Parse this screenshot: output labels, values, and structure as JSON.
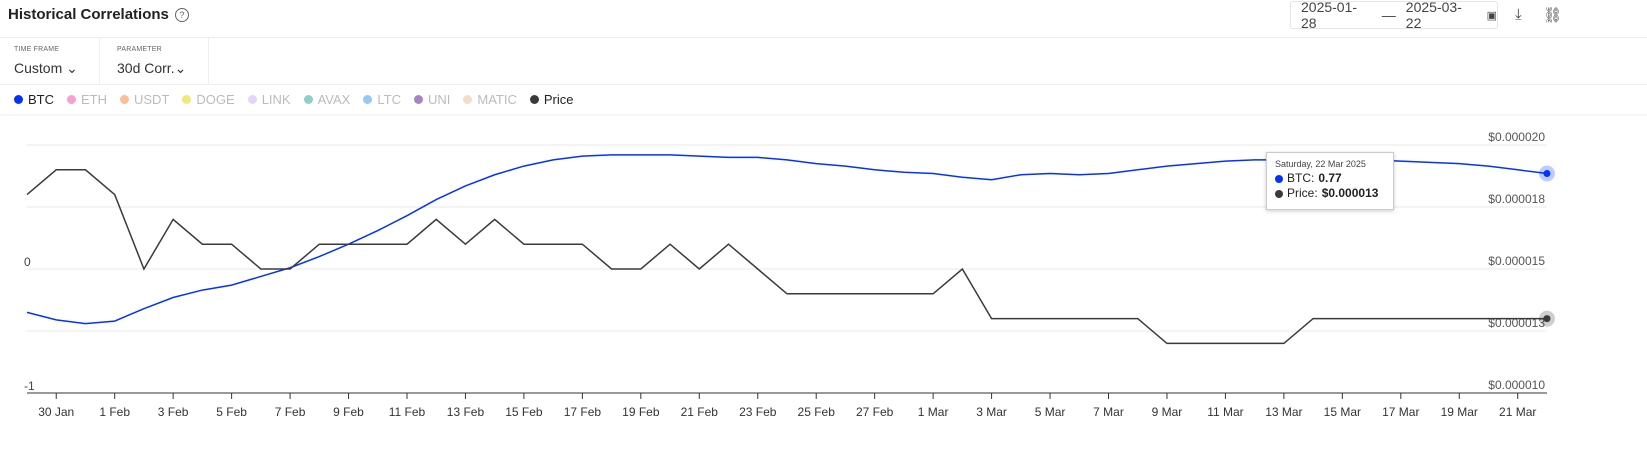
{
  "header": {
    "title": "Historical Correlations",
    "help_icon": "question-circle-icon"
  },
  "date_range": {
    "start": "2025-01-28",
    "separator": "—",
    "end": "2025-03-22",
    "icon": "calendar-icon"
  },
  "actions": {
    "download_icon": "download-icon",
    "link_icon": "link-icon"
  },
  "filters": [
    {
      "label": "TIME FRAME",
      "value": "Custom"
    },
    {
      "label": "PARAMETER",
      "value": "30d Corr."
    }
  ],
  "legend": [
    {
      "name": "BTC",
      "color": "#0033ff",
      "active": true
    },
    {
      "name": "ETH",
      "color": "#f7a1cf",
      "active": false
    },
    {
      "name": "USDT",
      "color": "#f9bf96",
      "active": false
    },
    {
      "name": "DOGE",
      "color": "#eee97a",
      "active": false
    },
    {
      "name": "LINK",
      "color": "#e8d2fb",
      "active": false
    },
    {
      "name": "AVAX",
      "color": "#8ecfcb",
      "active": false
    },
    {
      "name": "LTC",
      "color": "#94c8f7",
      "active": false
    },
    {
      "name": "UNI",
      "color": "#a585c1",
      "active": false
    },
    {
      "name": "MATIC",
      "color": "#f5dcc6",
      "active": false
    },
    {
      "name": "Price",
      "color": "#3a3a3a",
      "active": true
    }
  ],
  "tooltip": {
    "date": "Saturday, 22 Mar 2025",
    "rows": [
      {
        "label": "BTC:",
        "value": "0.77",
        "color": "#0033ff"
      },
      {
        "label": "Price:",
        "value": "$0.000013",
        "color": "#3a3a3a"
      }
    ]
  },
  "chart_data": {
    "type": "line",
    "x_start": "2025-01-29",
    "x_end": "2025-03-22",
    "x_tick_labels": [
      "30 Jan",
      "1 Feb",
      "3 Feb",
      "5 Feb",
      "7 Feb",
      "9 Feb",
      "11 Feb",
      "13 Feb",
      "15 Feb",
      "17 Feb",
      "19 Feb",
      "21 Feb",
      "23 Feb",
      "25 Feb",
      "27 Feb",
      "1 Mar",
      "3 Mar",
      "5 Mar",
      "7 Mar",
      "9 Mar",
      "11 Mar",
      "13 Mar",
      "15 Mar",
      "17 Mar",
      "19 Mar",
      "21 Mar"
    ],
    "y_left": {
      "range": [
        -1,
        1
      ],
      "tick_labels": [
        "0",
        "-1"
      ]
    },
    "y_right": {
      "range": [
        1e-05,
        2e-05
      ],
      "tick_labels": [
        "$0.000020",
        "$0.000018",
        "$0.000015",
        "$0.000013",
        "$0.000010"
      ]
    },
    "grid": true,
    "series": [
      {
        "name": "BTC",
        "axis": "left",
        "color": "#0033ff",
        "values": [
          -0.35,
          -0.41,
          -0.44,
          -0.42,
          -0.32,
          -0.23,
          -0.17,
          -0.13,
          -0.06,
          0.01,
          0.1,
          0.2,
          0.31,
          0.43,
          0.56,
          0.67,
          0.76,
          0.83,
          0.88,
          0.91,
          0.92,
          0.92,
          0.92,
          0.91,
          0.9,
          0.9,
          0.88,
          0.85,
          0.83,
          0.8,
          0.78,
          0.77,
          0.74,
          0.72,
          0.76,
          0.77,
          0.76,
          0.77,
          0.8,
          0.83,
          0.85,
          0.87,
          0.88,
          0.88,
          0.89,
          0.89,
          0.88,
          0.87,
          0.86,
          0.85,
          0.83,
          0.8,
          0.77
        ]
      },
      {
        "name": "Price",
        "axis": "right",
        "color": "#3a3a3a",
        "values": [
          1.8e-05,
          1.9e-05,
          1.9e-05,
          1.8e-05,
          1.5e-05,
          1.7e-05,
          1.6e-05,
          1.6e-05,
          1.5e-05,
          1.5e-05,
          1.6e-05,
          1.6e-05,
          1.6e-05,
          1.6e-05,
          1.7e-05,
          1.6e-05,
          1.7e-05,
          1.6e-05,
          1.6e-05,
          1.6e-05,
          1.5e-05,
          1.5e-05,
          1.6e-05,
          1.5e-05,
          1.6e-05,
          1.5e-05,
          1.4e-05,
          1.4e-05,
          1.4e-05,
          1.4e-05,
          1.4e-05,
          1.4e-05,
          1.5e-05,
          1.3e-05,
          1.3e-05,
          1.3e-05,
          1.3e-05,
          1.3e-05,
          1.3e-05,
          1.2e-05,
          1.2e-05,
          1.2e-05,
          1.2e-05,
          1.2e-05,
          1.3e-05,
          1.3e-05,
          1.3e-05,
          1.3e-05,
          1.3e-05,
          1.3e-05,
          1.3e-05,
          1.3e-05,
          1.3e-05
        ]
      }
    ]
  }
}
